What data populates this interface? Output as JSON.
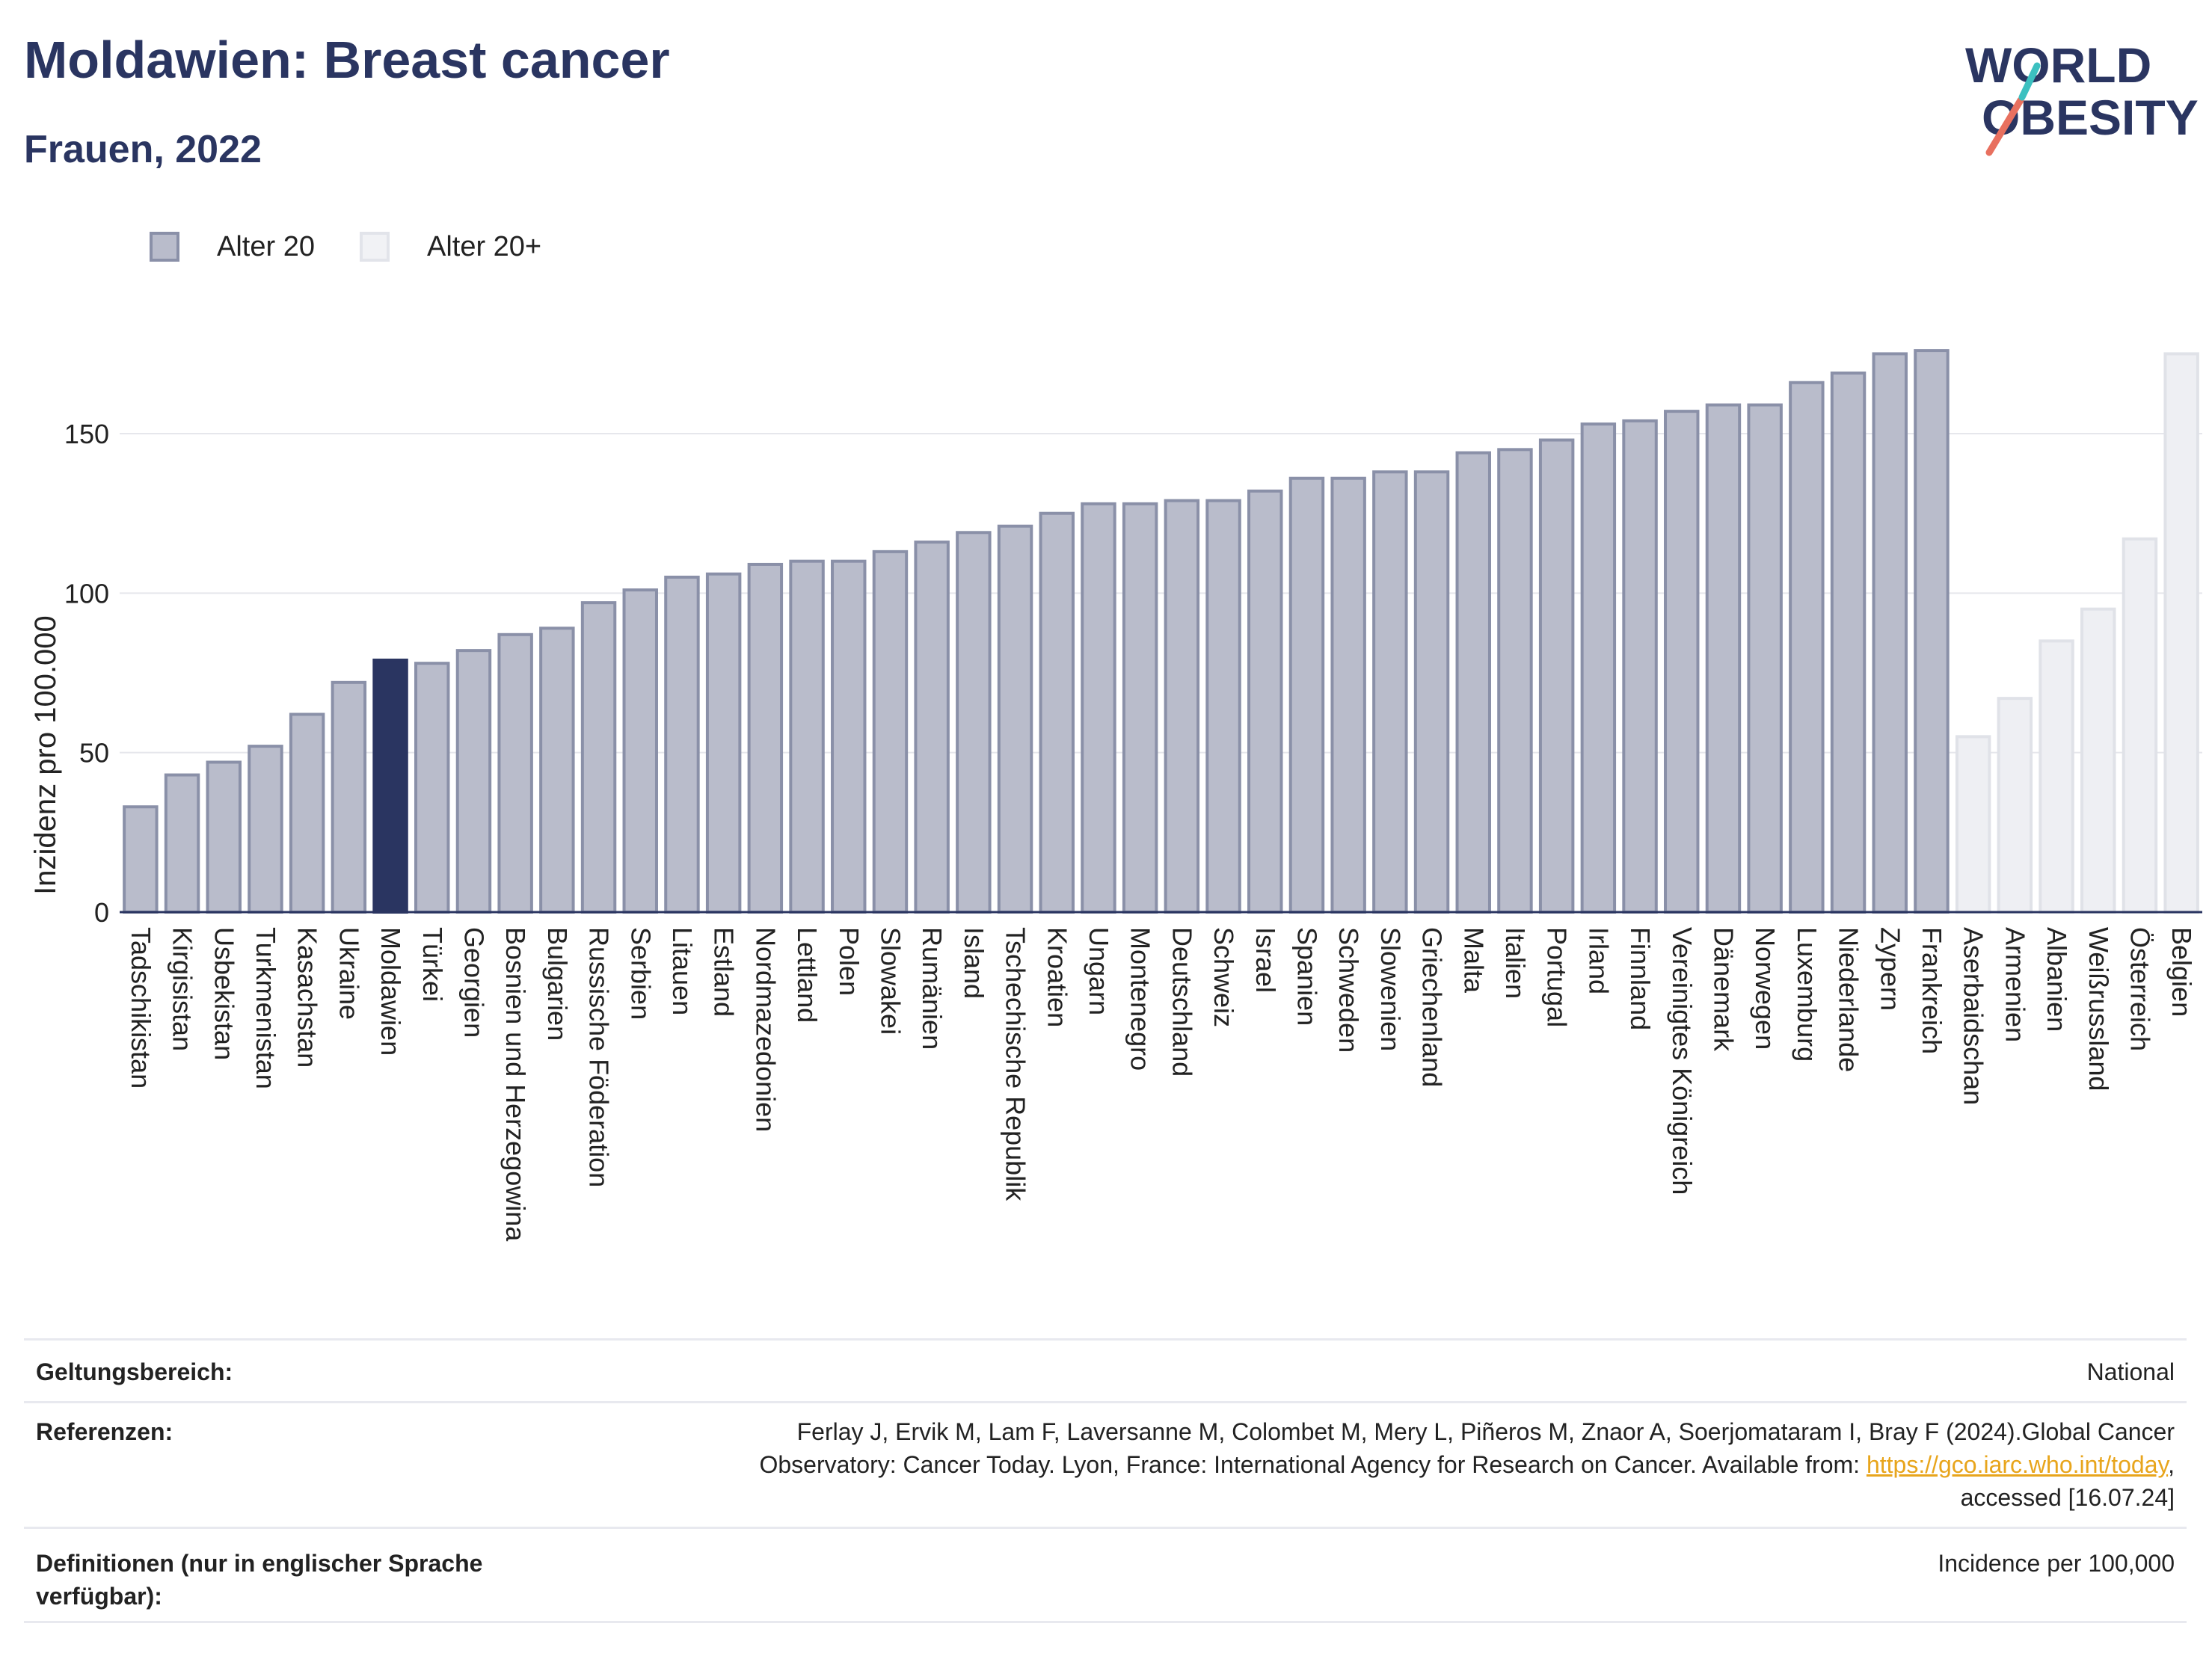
{
  "header": {
    "title": "Moldawien: Breast cancer",
    "subtitle": "Frauen, 2022"
  },
  "logo": {
    "line1": "WORLD",
    "line2": "OBESITY"
  },
  "legend": {
    "item1": "Alter 20",
    "item2": "Alter 20+"
  },
  "colors": {
    "bar": "#b9bccb",
    "bar_border": "#8a90a8",
    "highlight": "#2a3561",
    "bar_light": "#eeeff3",
    "bar_light_border": "#e0e2e8",
    "title": "#2a3561",
    "link": "#e8a51c"
  },
  "chart_data": {
    "type": "bar",
    "ylabel": "Inzidenz pro 100.000",
    "xlabel": "",
    "ylim": [
      0,
      190
    ],
    "yticks": [
      0,
      50,
      100,
      150
    ],
    "grid": true,
    "legend_position": "top-left",
    "highlight": "Moldawien",
    "categories": [
      "Tadschikistan",
      "Kirgisistan",
      "Usbekistan",
      "Turkmenistan",
      "Kasachstan",
      "Ukraine",
      "Moldawien",
      "Türkei",
      "Georgien",
      "Bosnien und Herzegowina",
      "Bulgarien",
      "Russische Föderation",
      "Serbien",
      "Litauen",
      "Estland",
      "Nordmazedonien",
      "Lettland",
      "Polen",
      "Slowakei",
      "Rumänien",
      "Island",
      "Tschechische Republik",
      "Kroatien",
      "Ungarn",
      "Montenegro",
      "Deutschland",
      "Schweiz",
      "Israel",
      "Spanien",
      "Schweden",
      "Slowenien",
      "Griechenland",
      "Malta",
      "Italien",
      "Portugal",
      "Irland",
      "Finnland",
      "Vereinigtes Königreich",
      "Dänemark",
      "Norwegen",
      "Luxemburg",
      "Niederlande",
      "Zypern",
      "Frankreich",
      "Aserbaidschan",
      "Armenien",
      "Albanien",
      "Weißrussland",
      "Österreich",
      "Belgien"
    ],
    "series": [
      {
        "name": "Alter 20",
        "values": [
          33,
          43,
          47,
          52,
          62,
          72,
          79,
          78,
          82,
          87,
          89,
          97,
          101,
          105,
          106,
          109,
          110,
          110,
          113,
          116,
          119,
          121,
          125,
          128,
          128,
          129,
          129,
          132,
          136,
          136,
          138,
          138,
          144,
          145,
          148,
          153,
          154,
          157,
          159,
          159,
          166,
          169,
          175,
          176,
          null,
          null,
          null,
          null,
          null,
          null
        ]
      },
      {
        "name": "Alter 20+",
        "values": [
          null,
          null,
          null,
          null,
          null,
          null,
          null,
          null,
          null,
          null,
          null,
          null,
          null,
          null,
          null,
          null,
          null,
          null,
          null,
          null,
          null,
          null,
          null,
          null,
          null,
          null,
          null,
          null,
          null,
          null,
          null,
          null,
          null,
          null,
          null,
          null,
          null,
          null,
          null,
          null,
          null,
          null,
          null,
          null,
          55,
          67,
          85,
          95,
          117,
          175
        ]
      }
    ]
  },
  "info": {
    "scope_label": "Geltungsbereich:",
    "scope_value": "National",
    "ref_label": "Referenzen:",
    "ref_line1": "Ferlay J, Ervik M, Lam F, Laversanne M, Colombet M, Mery L, Piñeros M, Znaor A, Soerjomataram I, Bray F (2024).Global Cancer",
    "ref_line2_pre": "Observatory: Cancer Today. Lyon, France: International Agency for Research on Cancer. Available from: ",
    "ref_link": "https://gco.iarc.who.int/today",
    "ref_line2_post": ",",
    "ref_line3": "accessed [16.07.24]",
    "def_label": "Definitionen (nur in englischer Sprache verfügbar):",
    "def_value": "Incidence per 100,000"
  }
}
